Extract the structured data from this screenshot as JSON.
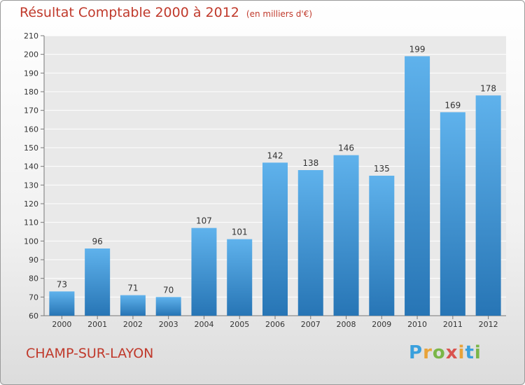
{
  "title": "Résultat Comptable 2000 à 2012",
  "unit": "(en milliers d'€)",
  "city": "CHAMP-SUR-LAYON",
  "brand": {
    "letters": [
      "P",
      "r",
      "o",
      "x",
      "i",
      "t",
      "i"
    ],
    "colors": [
      "#3aa0dd",
      "#e8a33a",
      "#7ab648",
      "#d9534f",
      "#e8a33a",
      "#3aa0dd",
      "#7ab648"
    ]
  },
  "colors": {
    "bar_top": "#5fb2ec",
    "bar_bottom": "#2775b5",
    "title": "#c0392b"
  },
  "chart_data": {
    "type": "bar",
    "title": "Résultat Comptable 2000 à 2012",
    "xlabel": "",
    "ylabel": "",
    "categories": [
      "2000",
      "2001",
      "2002",
      "2003",
      "2004",
      "2005",
      "2006",
      "2007",
      "2008",
      "2009",
      "2010",
      "2011",
      "2012"
    ],
    "values": [
      73,
      96,
      71,
      70,
      107,
      101,
      142,
      138,
      146,
      135,
      199,
      169,
      178
    ],
    "ylim": [
      60,
      210
    ],
    "yticks": [
      60,
      70,
      80,
      90,
      100,
      110,
      120,
      130,
      140,
      150,
      160,
      170,
      180,
      190,
      200,
      210
    ],
    "grid": true,
    "legend": "none"
  }
}
